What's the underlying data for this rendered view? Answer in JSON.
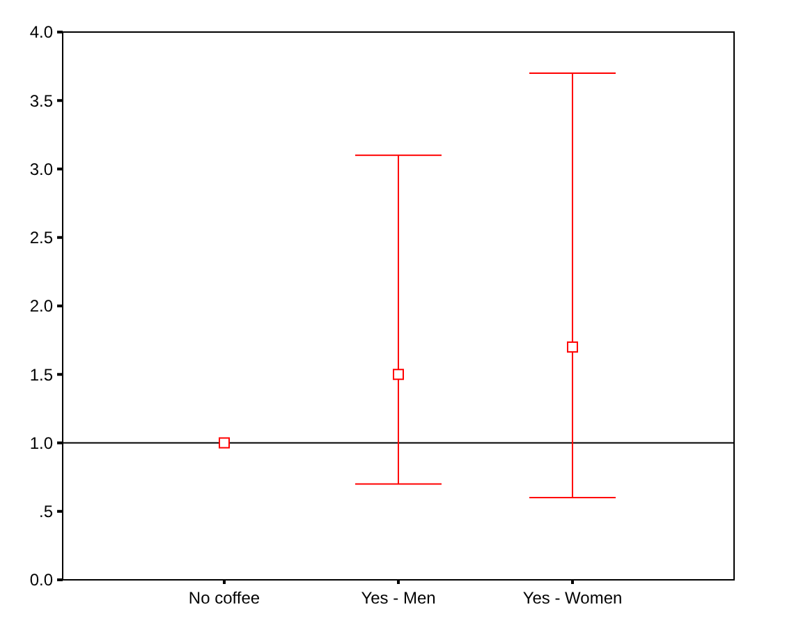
{
  "chart_data": {
    "type": "scatter",
    "categories": [
      "No coffee",
      "Yes - Men",
      "Yes - Women"
    ],
    "values": [
      1.0,
      1.5,
      1.7
    ],
    "errors": [
      null,
      [
        0.7,
        3.1
      ],
      [
        0.6,
        3.7
      ]
    ],
    "color": "#ff0000",
    "marker": "square",
    "grid": false,
    "ylim": [
      0,
      4
    ],
    "yticks": [
      {
        "value": 0,
        "label": "0.0"
      },
      {
        "value": 0.5,
        "label": ".5"
      },
      {
        "value": 1,
        "label": "1.0"
      },
      {
        "value": 1.5,
        "label": "1.5"
      },
      {
        "value": 2,
        "label": "2.0"
      },
      {
        "value": 2.5,
        "label": "2.5"
      },
      {
        "value": 3,
        "label": "3.0"
      },
      {
        "value": 3.5,
        "label": "3.5"
      },
      {
        "value": 4,
        "label": "4.0"
      }
    ],
    "ref_lines": [
      {
        "axis": "y",
        "value": 1,
        "color": "#000000"
      }
    ]
  }
}
